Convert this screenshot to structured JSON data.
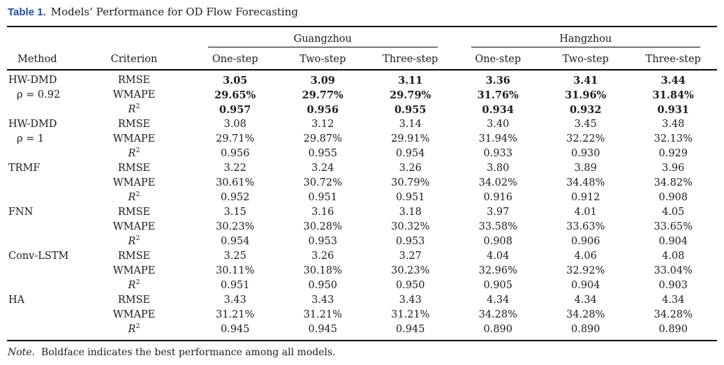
{
  "title": {
    "label": "Table 1.",
    "text": "Models’ Performance for OD Flow Forecasting"
  },
  "colors": {
    "title_label": "#264a9a",
    "body_text": "#1c1c1c",
    "rule": "#000000"
  },
  "header": {
    "method": "Method",
    "criterion": "Criterion",
    "groups": [
      {
        "city": "Guangzhou",
        "steps": [
          "One-step",
          "Two-step",
          "Three-step"
        ]
      },
      {
        "city": "Hangzhou",
        "steps": [
          "One-step",
          "Two-step",
          "Three-step"
        ]
      }
    ]
  },
  "body": {
    "groups": [
      {
        "method_lines": [
          "HW-DMD",
          "ρ = 0.92"
        ],
        "bold": true,
        "rows": [
          {
            "criterion": {
              "text": "RMSE"
            },
            "values": [
              "3.05",
              "3.09",
              "3.11",
              "3.36",
              "3.41",
              "3.44"
            ]
          },
          {
            "criterion": {
              "text": "WMAPE"
            },
            "values": [
              "29.65%",
              "29.77%",
              "29.79%",
              "31.76%",
              "31.96%",
              "31.84%"
            ]
          },
          {
            "criterion": {
              "text": "R",
              "sup": "2",
              "italic": true
            },
            "values": [
              "0.957",
              "0.956",
              "0.955",
              "0.934",
              "0.932",
              "0.931"
            ]
          }
        ]
      },
      {
        "method_lines": [
          "HW-DMD",
          "ρ = 1"
        ],
        "bold": false,
        "rows": [
          {
            "criterion": {
              "text": "RMSE"
            },
            "values": [
              "3.08",
              "3.12",
              "3.14",
              "3.40",
              "3.45",
              "3.48"
            ]
          },
          {
            "criterion": {
              "text": "WMAPE"
            },
            "values": [
              "29.71%",
              "29.87%",
              "29.91%",
              "31.94%",
              "32.22%",
              "32.13%"
            ]
          },
          {
            "criterion": {
              "text": "R",
              "sup": "2",
              "italic": true
            },
            "values": [
              "0.956",
              "0.955",
              "0.954",
              "0.933",
              "0.930",
              "0.929"
            ]
          }
        ]
      },
      {
        "method_lines": [
          "TRMF"
        ],
        "bold": false,
        "rows": [
          {
            "criterion": {
              "text": "RMSE"
            },
            "values": [
              "3.22",
              "3.24",
              "3.26",
              "3.80",
              "3.89",
              "3.96"
            ]
          },
          {
            "criterion": {
              "text": "WMAPE"
            },
            "values": [
              "30.61%",
              "30.72%",
              "30.79%",
              "34.02%",
              "34.48%",
              "34.82%"
            ]
          },
          {
            "criterion": {
              "text": "R",
              "sup": "2",
              "italic": true
            },
            "values": [
              "0.952",
              "0.951",
              "0.951",
              "0.916",
              "0.912",
              "0.908"
            ]
          }
        ]
      },
      {
        "method_lines": [
          "FNN"
        ],
        "bold": false,
        "rows": [
          {
            "criterion": {
              "text": "RMSE"
            },
            "values": [
              "3.15",
              "3.16",
              "3.18",
              "3.97",
              "4.01",
              "4.05"
            ]
          },
          {
            "criterion": {
              "text": "WMAPE"
            },
            "values": [
              "30.23%",
              "30.28%",
              "30.32%",
              "33.58%",
              "33.63%",
              "33.65%"
            ]
          },
          {
            "criterion": {
              "text": "R",
              "sup": "2",
              "italic": true
            },
            "values": [
              "0.954",
              "0.953",
              "0.953",
              "0.908",
              "0.906",
              "0.904"
            ]
          }
        ]
      },
      {
        "method_lines": [
          "Conv-LSTM"
        ],
        "bold": false,
        "rows": [
          {
            "criterion": {
              "text": "RMSE"
            },
            "values": [
              "3.25",
              "3.26",
              "3.27",
              "4.04",
              "4.06",
              "4.08"
            ]
          },
          {
            "criterion": {
              "text": "WMAPE"
            },
            "values": [
              "30.11%",
              "30.18%",
              "30.23%",
              "32.96%",
              "32.92%",
              "33.04%"
            ]
          },
          {
            "criterion": {
              "text": "R",
              "sup": "2",
              "italic": true
            },
            "values": [
              "0.951",
              "0.950",
              "0.950",
              "0.905",
              "0.904",
              "0.903"
            ]
          }
        ]
      },
      {
        "method_lines": [
          "HA"
        ],
        "bold": false,
        "rows": [
          {
            "criterion": {
              "text": "RMSE"
            },
            "values": [
              "3.43",
              "3.43",
              "3.43",
              "4.34",
              "4.34",
              "4.34"
            ]
          },
          {
            "criterion": {
              "text": "WMAPE"
            },
            "values": [
              "31.21%",
              "31.21%",
              "31.21%",
              "34.28%",
              "34.28%",
              "34.28%"
            ]
          },
          {
            "criterion": {
              "text": "R",
              "sup": "2",
              "italic": true
            },
            "values": [
              "0.945",
              "0.945",
              "0.945",
              "0.890",
              "0.890",
              "0.890"
            ]
          }
        ]
      }
    ]
  },
  "note": {
    "label": "Note.",
    "text": "Boldface indicates the best performance among all models."
  }
}
